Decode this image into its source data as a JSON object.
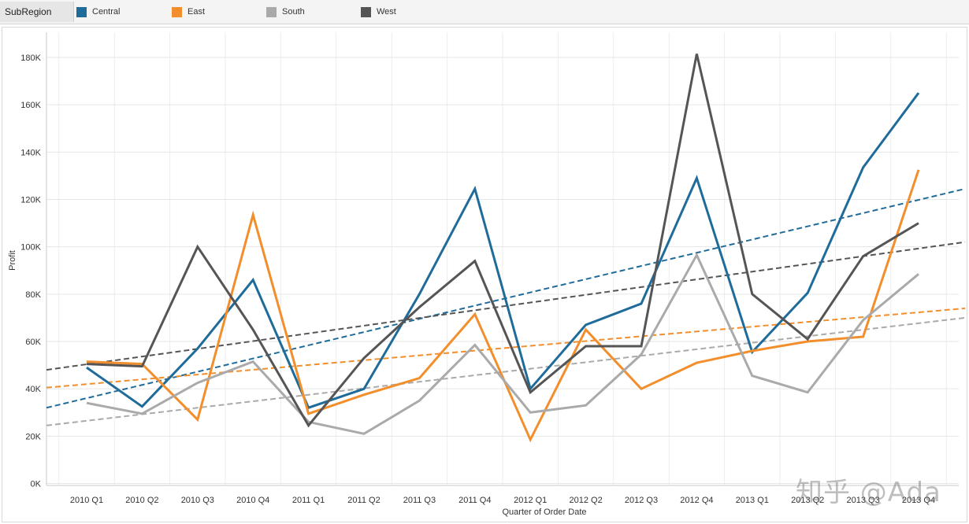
{
  "legend": {
    "title": "SubRegion",
    "items": [
      {
        "label": "Central",
        "color": "#1f6b9a"
      },
      {
        "label": "East",
        "color": "#f28e2b"
      },
      {
        "label": "South",
        "color": "#aaaaaa"
      },
      {
        "label": "West",
        "color": "#555555"
      }
    ]
  },
  "watermark": "知乎 @Ada",
  "chart_data": {
    "type": "line",
    "xlabel": "Quarter of Order Date",
    "ylabel": "Profit",
    "categories": [
      "2010 Q1",
      "2010 Q2",
      "2010 Q3",
      "2010 Q4",
      "2011 Q1",
      "2011 Q2",
      "2011 Q3",
      "2011 Q4",
      "2012 Q1",
      "2012 Q2",
      "2012 Q3",
      "2012 Q4",
      "2013 Q1",
      "2013 Q2",
      "2013 Q3",
      "2013 Q4"
    ],
    "ylim": [
      0,
      180000
    ],
    "yticks": [
      0,
      20000,
      40000,
      60000,
      80000,
      100000,
      120000,
      140000,
      160000,
      180000
    ],
    "ytick_labels": [
      "0K",
      "20K",
      "40K",
      "60K",
      "80K",
      "100K",
      "120K",
      "140K",
      "160K",
      "180K"
    ],
    "grid": true,
    "series": [
      {
        "name": "Central",
        "color": "#1f6b9a",
        "values": [
          49000,
          32500,
          57000,
          86000,
          32000,
          40000,
          80000,
          124500,
          40000,
          67000,
          76000,
          129000,
          55500,
          80500,
          133500,
          165000
        ],
        "trend_start": 32000,
        "trend_end": 124500
      },
      {
        "name": "East",
        "color": "#f28e2b",
        "values": [
          51500,
          50500,
          27000,
          113500,
          29500,
          37500,
          44500,
          71500,
          18500,
          65000,
          40000,
          51000,
          56000,
          60000,
          62000,
          132500
        ],
        "trend_start": 40500,
        "trend_end": 74000
      },
      {
        "name": "South",
        "color": "#aaaaaa",
        "values": [
          34000,
          29500,
          42500,
          51500,
          26000,
          21000,
          35000,
          58500,
          30000,
          33000,
          54500,
          96500,
          45500,
          38500,
          69000,
          88500
        ],
        "trend_start": 24500,
        "trend_end": 70000
      },
      {
        "name": "West",
        "color": "#555555",
        "values": [
          50500,
          49500,
          100000,
          65000,
          24500,
          53000,
          74500,
          94000,
          38500,
          58000,
          58000,
          181500,
          80000,
          61000,
          96000,
          110000
        ],
        "trend_start": 48000,
        "trend_end": 102000
      }
    ]
  }
}
